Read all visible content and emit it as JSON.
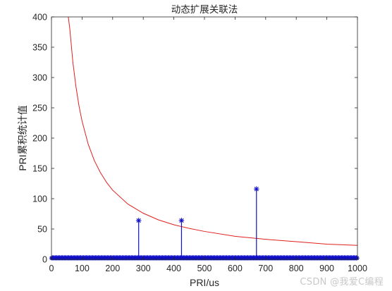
{
  "chart_data": {
    "type": "line",
    "title": "动态扩展关联法",
    "xlabel": "PRI/us",
    "ylabel": "PRI累积统计值",
    "xlim": [
      0,
      1000
    ],
    "ylim": [
      0,
      400
    ],
    "xticks": [
      0,
      100,
      200,
      300,
      400,
      500,
      600,
      700,
      800,
      900,
      1000
    ],
    "yticks": [
      0,
      50,
      100,
      150,
      200,
      250,
      300,
      350,
      400
    ],
    "grid": false,
    "series": [
      {
        "style": "line",
        "color": "#e0201e",
        "x": [
          55,
          60,
          70,
          80,
          90,
          100,
          120,
          140,
          160,
          180,
          200,
          250,
          300,
          350,
          400,
          450,
          500,
          600,
          700,
          800,
          900,
          1000
        ],
        "y": [
          400,
          380,
          325,
          285,
          253,
          228,
          190,
          163,
          143,
          127,
          114,
          91,
          76,
          65,
          57,
          51,
          46,
          38,
          33,
          29,
          25,
          23
        ]
      },
      {
        "style": "stem",
        "color": "#1010c8",
        "marker": "*",
        "x": [
          285,
          425,
          670
        ],
        "y": [
          64,
          64,
          116
        ]
      },
      {
        "style": "stem-baseline",
        "color": "#1010c8",
        "marker": "*",
        "x_range": [
          0,
          1000
        ],
        "y": 2
      }
    ]
  },
  "watermark": "CSDN @我爱C编程"
}
